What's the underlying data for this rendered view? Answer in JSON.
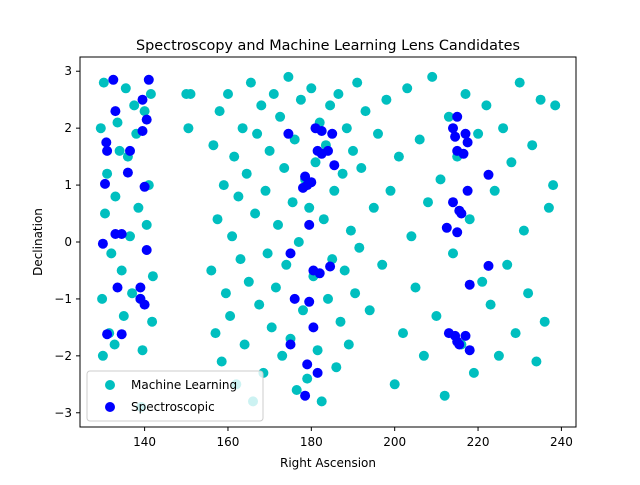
{
  "chart_data": {
    "type": "scatter",
    "title": "Spectroscopy and Machine Learning Lens Candidates",
    "xlabel": "Right Ascension",
    "ylabel": "Declination",
    "xlim": [
      124.5,
      243.5
    ],
    "ylim": [
      -3.25,
      3.25
    ],
    "xticks": [
      140,
      160,
      180,
      200,
      220,
      240
    ],
    "yticks": [
      -3,
      -2,
      -1,
      0,
      1,
      2,
      3
    ],
    "grid": false,
    "legend": "lower-left",
    "series": [
      {
        "name": "Machine Learning",
        "color": "#00bfbf",
        "points": [
          [
            130.0,
            -2.0
          ],
          [
            131.5,
            -1.6
          ],
          [
            129.5,
            2.0
          ],
          [
            131.0,
            1.2
          ],
          [
            133.0,
            0.8
          ],
          [
            134.5,
            -0.5
          ],
          [
            136.0,
            1.5
          ],
          [
            137.5,
            2.4
          ],
          [
            139.0,
            -1.0
          ],
          [
            140.5,
            0.3
          ],
          [
            141.5,
            2.6
          ],
          [
            130.5,
            0.5
          ],
          [
            132.0,
            -0.2
          ],
          [
            133.5,
            2.1
          ],
          [
            135.0,
            -1.3
          ],
          [
            136.5,
            0.1
          ],
          [
            138.0,
            1.9
          ],
          [
            139.5,
            -1.9
          ],
          [
            141.0,
            1.0
          ],
          [
            142.0,
            -0.6
          ],
          [
            130.2,
            2.8
          ],
          [
            132.8,
            -1.8
          ],
          [
            134.0,
            1.6
          ],
          [
            137.0,
            -0.9
          ],
          [
            138.5,
            0.6
          ],
          [
            140.0,
            2.3
          ],
          [
            141.8,
            -1.4
          ],
          [
            129.8,
            -1.0
          ],
          [
            135.5,
            2.7
          ],
          [
            139.2,
            -2.9
          ],
          [
            150.0,
            2.6
          ],
          [
            150.5,
            2.0
          ],
          [
            151.0,
            2.6
          ],
          [
            156.0,
            -0.5
          ],
          [
            156.5,
            1.7
          ],
          [
            157.0,
            -1.6
          ],
          [
            157.5,
            0.4
          ],
          [
            158.0,
            2.3
          ],
          [
            158.5,
            -2.1
          ],
          [
            159.0,
            1.0
          ],
          [
            159.5,
            -0.9
          ],
          [
            160.0,
            2.6
          ],
          [
            160.5,
            -1.3
          ],
          [
            161.0,
            0.1
          ],
          [
            161.5,
            1.5
          ],
          [
            162.0,
            -2.5
          ],
          [
            162.5,
            0.8
          ],
          [
            163.0,
            -0.3
          ],
          [
            163.5,
            2.0
          ],
          [
            164.0,
            -1.8
          ],
          [
            164.5,
            1.2
          ],
          [
            165.0,
            -0.7
          ],
          [
            165.5,
            2.8
          ],
          [
            166.0,
            -2.8
          ],
          [
            166.5,
            0.5
          ],
          [
            167.0,
            1.9
          ],
          [
            167.5,
            -1.1
          ],
          [
            168.0,
            2.4
          ],
          [
            168.5,
            -2.3
          ],
          [
            169.0,
            0.9
          ],
          [
            169.5,
            -0.2
          ],
          [
            170.0,
            1.6
          ],
          [
            170.5,
            -1.5
          ],
          [
            171.0,
            2.6
          ],
          [
            171.5,
            -0.8
          ],
          [
            172.0,
            0.3
          ],
          [
            172.5,
            2.2
          ],
          [
            173.0,
            -2.0
          ],
          [
            173.5,
            1.3
          ],
          [
            174.0,
            -0.4
          ],
          [
            174.5,
            2.9
          ],
          [
            175.0,
            -1.7
          ],
          [
            175.5,
            0.7
          ],
          [
            176.0,
            1.8
          ],
          [
            176.5,
            -2.6
          ],
          [
            177.0,
            0.0
          ],
          [
            177.5,
            2.5
          ],
          [
            178.0,
            -1.2
          ],
          [
            178.5,
            1.1
          ],
          [
            179.0,
            -2.4
          ],
          [
            179.5,
            0.6
          ],
          [
            180.0,
            2.7
          ],
          [
            180.5,
            -0.6
          ],
          [
            181.0,
            1.4
          ],
          [
            181.5,
            -1.9
          ],
          [
            182.0,
            2.1
          ],
          [
            182.5,
            -2.8
          ],
          [
            183.0,
            0.4
          ],
          [
            183.5,
            1.7
          ],
          [
            184.0,
            -1.0
          ],
          [
            184.5,
            2.4
          ],
          [
            185.0,
            -0.3
          ],
          [
            185.5,
            0.9
          ],
          [
            186.0,
            -2.2
          ],
          [
            186.5,
            2.6
          ],
          [
            187.0,
            -1.4
          ],
          [
            187.5,
            1.2
          ],
          [
            188.0,
            -0.5
          ],
          [
            188.5,
            2.0
          ],
          [
            189.0,
            -1.8
          ],
          [
            189.5,
            0.2
          ],
          [
            190.0,
            1.6
          ],
          [
            190.5,
            -0.9
          ],
          [
            191.0,
            2.8
          ],
          [
            191.5,
            -0.1
          ],
          [
            192.0,
            1.3
          ],
          [
            193.0,
            2.3
          ],
          [
            194.0,
            -1.2
          ],
          [
            195.0,
            0.6
          ],
          [
            196.0,
            1.9
          ],
          [
            197.0,
            -0.4
          ],
          [
            198.0,
            2.5
          ],
          [
            199.0,
            0.9
          ],
          [
            200.0,
            -2.5
          ],
          [
            201.0,
            1.5
          ],
          [
            202.0,
            -1.6
          ],
          [
            203.0,
            2.7
          ],
          [
            204.0,
            0.1
          ],
          [
            205.0,
            -0.8
          ],
          [
            206.0,
            1.8
          ],
          [
            207.0,
            -2.0
          ],
          [
            208.0,
            0.7
          ],
          [
            209.0,
            2.9
          ],
          [
            210.0,
            -1.3
          ],
          [
            211.0,
            1.1
          ],
          [
            212.0,
            -2.7
          ],
          [
            213.0,
            2.2
          ],
          [
            214.0,
            -0.2
          ],
          [
            215.0,
            1.5
          ],
          [
            216.0,
            -1.8
          ],
          [
            217.0,
            2.6
          ],
          [
            218.0,
            0.4
          ],
          [
            219.0,
            -2.3
          ],
          [
            220.0,
            1.9
          ],
          [
            221.0,
            -0.7
          ],
          [
            222.0,
            2.4
          ],
          [
            223.0,
            -1.1
          ],
          [
            224.0,
            0.9
          ],
          [
            225.0,
            -2.0
          ],
          [
            226.0,
            2.0
          ],
          [
            227.0,
            -0.4
          ],
          [
            228.0,
            1.4
          ],
          [
            229.0,
            -1.6
          ],
          [
            230.0,
            2.8
          ],
          [
            231.0,
            0.2
          ],
          [
            232.0,
            -0.9
          ],
          [
            233.0,
            1.7
          ],
          [
            234.0,
            -2.1
          ],
          [
            235.0,
            2.5
          ],
          [
            236.0,
            -1.4
          ],
          [
            237.0,
            0.6
          ],
          [
            238.0,
            1.0
          ],
          [
            238.5,
            2.4
          ]
        ]
      },
      {
        "name": "Spectroscopic",
        "color": "#0000ff",
        "points": [
          [
            132.5,
            2.85
          ],
          [
            141.0,
            2.85
          ],
          [
            139.5,
            2.5
          ],
          [
            133.0,
            2.3
          ],
          [
            140.5,
            2.15
          ],
          [
            139.5,
            1.95
          ],
          [
            130.8,
            1.75
          ],
          [
            131.0,
            1.6
          ],
          [
            136.5,
            1.6
          ],
          [
            136.0,
            1.22
          ],
          [
            130.5,
            1.02
          ],
          [
            140.0,
            0.97
          ],
          [
            130.0,
            -0.03
          ],
          [
            133.0,
            0.14
          ],
          [
            134.5,
            0.14
          ],
          [
            140.5,
            -0.14
          ],
          [
            133.5,
            -0.8
          ],
          [
            139.0,
            -0.8
          ],
          [
            139.0,
            -1.0
          ],
          [
            140.0,
            -1.1
          ],
          [
            131.0,
            -1.62
          ],
          [
            134.5,
            -1.62
          ],
          [
            174.5,
            1.9
          ],
          [
            181.0,
            2.0
          ],
          [
            182.5,
            1.95
          ],
          [
            181.5,
            1.6
          ],
          [
            185.0,
            1.9
          ],
          [
            184.0,
            1.6
          ],
          [
            182.5,
            1.55
          ],
          [
            185.5,
            1.35
          ],
          [
            178.5,
            1.15
          ],
          [
            179.0,
            1.0
          ],
          [
            180.0,
            1.05
          ],
          [
            178.0,
            0.95
          ],
          [
            179.5,
            0.3
          ],
          [
            175.0,
            -0.2
          ],
          [
            180.5,
            -0.5
          ],
          [
            182.0,
            -0.55
          ],
          [
            184.5,
            -0.43
          ],
          [
            179.5,
            -1.05
          ],
          [
            180.5,
            -1.5
          ],
          [
            176.0,
            -1.0
          ],
          [
            175.0,
            -1.8
          ],
          [
            179.0,
            -2.15
          ],
          [
            181.5,
            -2.3
          ],
          [
            178.5,
            -2.7
          ],
          [
            215.0,
            2.2
          ],
          [
            214.0,
            2.0
          ],
          [
            214.5,
            1.85
          ],
          [
            217.0,
            1.9
          ],
          [
            217.5,
            1.75
          ],
          [
            215.0,
            1.6
          ],
          [
            216.5,
            1.55
          ],
          [
            217.5,
            0.9
          ],
          [
            214.0,
            0.7
          ],
          [
            215.5,
            0.55
          ],
          [
            216.0,
            0.5
          ],
          [
            212.5,
            0.25
          ],
          [
            215.0,
            0.17
          ],
          [
            222.5,
            1.18
          ],
          [
            222.5,
            -0.42
          ],
          [
            218.0,
            -0.75
          ],
          [
            213.0,
            -1.6
          ],
          [
            214.5,
            -1.65
          ],
          [
            215.5,
            -1.8
          ],
          [
            217.0,
            -1.65
          ],
          [
            215.0,
            -1.75
          ],
          [
            218.0,
            -1.9
          ]
        ]
      }
    ]
  }
}
